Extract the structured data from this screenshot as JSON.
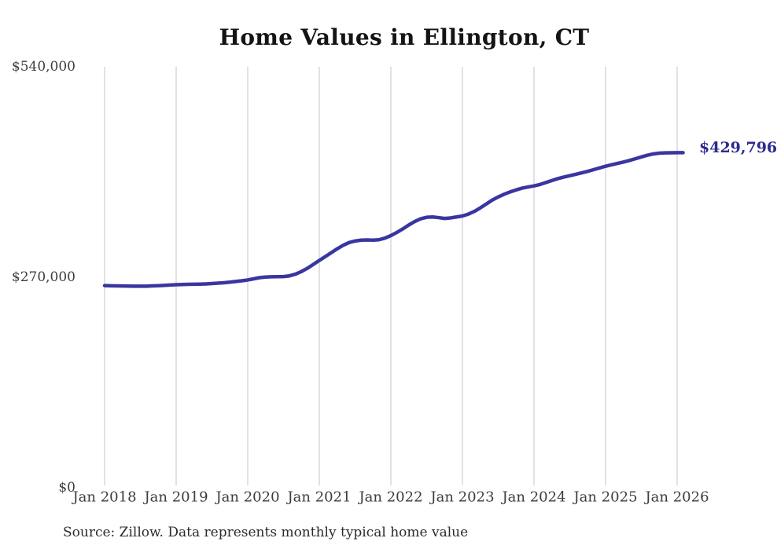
{
  "chart": {
    "title": "Home Values in Ellington, CT",
    "source": "Source: Zillow. Data represents monthly typical home value",
    "end_label": "$429,796",
    "colors": {
      "line": "#3a36a0",
      "end_label": "#2c2a8e",
      "gridline": "#c6c6c6",
      "tick_text": "#3d3d3d",
      "title_text": "#141414"
    }
  },
  "chart_data": {
    "type": "line",
    "title": "Home Values in Ellington, CT",
    "xlabel": "",
    "ylabel": "",
    "ylim": [
      0,
      540000
    ],
    "y_ticks": [
      0,
      270000,
      540000
    ],
    "y_tick_labels": [
      "$0",
      "$270,000",
      "$540,000"
    ],
    "x_tick_labels": [
      "Jan 2018",
      "Jan 2019",
      "Jan 2020",
      "Jan 2021",
      "Jan 2022",
      "Jan 2023",
      "Jan 2024",
      "Jan 2025",
      "Jan 2026"
    ],
    "x_start": "2018-01",
    "x_end": "2026-02",
    "x_interval": "monthly",
    "grid": "vertical-only",
    "legend": "none",
    "final_value": 429796,
    "final_value_label": "$429,796",
    "series": [
      {
        "name": "Monthly typical home value",
        "values": [
          259300,
          259100,
          258900,
          258800,
          258700,
          258600,
          258500,
          258600,
          258900,
          259200,
          259600,
          260000,
          260400,
          260700,
          260900,
          261000,
          261200,
          261500,
          261900,
          262400,
          263000,
          263700,
          264600,
          265500,
          266500,
          268000,
          269500,
          270300,
          270600,
          270700,
          270900,
          271800,
          274000,
          277300,
          281500,
          286500,
          291500,
          296500,
          301500,
          306500,
          311000,
          314500,
          316500,
          317600,
          317900,
          317600,
          318100,
          320200,
          323400,
          327500,
          332000,
          337000,
          341500,
          345000,
          346900,
          347300,
          346500,
          345400,
          346100,
          347300,
          348600,
          351000,
          354500,
          359000,
          364000,
          369000,
          373000,
          376500,
          379500,
          382000,
          384300,
          385800,
          387200,
          389000,
          391500,
          394000,
          396500,
          398500,
          400300,
          402100,
          403900,
          405800,
          408000,
          410200,
          412400,
          414200,
          416000,
          417800,
          419800,
          422000,
          424300,
          426500,
          428200,
          429200,
          429600,
          429700,
          429750,
          429796
        ]
      }
    ]
  }
}
